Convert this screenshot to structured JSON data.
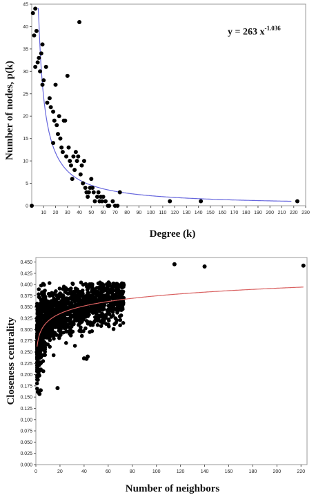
{
  "chart_data": [
    {
      "type": "scatter",
      "xlabel": "Degree (k)",
      "ylabel": "Number of nodes, p(k)",
      "equation": {
        "prefix": "y = 263 x",
        "exponent": "-1.036"
      },
      "xlim": [
        0,
        230
      ],
      "ylim": [
        0,
        45
      ],
      "xticks": [
        10,
        20,
        30,
        40,
        50,
        60,
        70,
        80,
        90,
        100,
        110,
        120,
        130,
        140,
        150,
        160,
        170,
        180,
        190,
        200,
        210,
        220,
        230
      ],
      "yticks": [
        0,
        5,
        10,
        15,
        20,
        25,
        30,
        35,
        40,
        45
      ],
      "grid": false,
      "legend": "none",
      "fit_color": "#6666dd",
      "fit": {
        "a": 263,
        "b": -1.036,
        "x_range": [
          5,
          218
        ]
      },
      "series": [
        {
          "marker_color": "#000000",
          "points": [
            [
              1,
              43
            ],
            [
              3,
              44
            ],
            [
              2,
              38
            ],
            [
              3,
              31
            ],
            [
              4,
              39
            ],
            [
              5,
              32
            ],
            [
              6,
              33
            ],
            [
              7,
              30
            ],
            [
              8,
              34
            ],
            [
              9,
              36
            ],
            [
              9,
              27
            ],
            [
              10,
              28
            ],
            [
              12,
              31
            ],
            [
              13,
              23
            ],
            [
              15,
              24
            ],
            [
              16,
              22
            ],
            [
              18,
              21
            ],
            [
              18,
              14
            ],
            [
              19,
              19
            ],
            [
              20,
              27
            ],
            [
              21,
              18
            ],
            [
              22,
              16
            ],
            [
              23,
              20
            ],
            [
              24,
              15
            ],
            [
              25,
              13
            ],
            [
              26,
              12
            ],
            [
              27,
              19
            ],
            [
              28,
              19
            ],
            [
              29,
              11
            ],
            [
              30,
              29
            ],
            [
              31,
              13
            ],
            [
              32,
              10
            ],
            [
              33,
              9
            ],
            [
              34,
              6
            ],
            [
              35,
              11
            ],
            [
              36,
              8
            ],
            [
              37,
              12
            ],
            [
              38,
              10
            ],
            [
              39,
              11
            ],
            [
              40,
              41
            ],
            [
              41,
              7
            ],
            [
              42,
              9
            ],
            [
              43,
              5
            ],
            [
              44,
              10
            ],
            [
              45,
              4
            ],
            [
              46,
              3
            ],
            [
              47,
              2
            ],
            [
              48,
              3
            ],
            [
              49,
              4
            ],
            [
              50,
              6
            ],
            [
              51,
              4
            ],
            [
              52,
              3
            ],
            [
              53,
              1
            ],
            [
              55,
              2
            ],
            [
              56,
              3
            ],
            [
              57,
              1
            ],
            [
              58,
              2
            ],
            [
              59,
              1
            ],
            [
              60,
              2
            ],
            [
              62,
              1
            ],
            [
              64,
              0
            ],
            [
              65,
              0
            ],
            [
              68,
              1
            ],
            [
              70,
              0
            ],
            [
              72,
              0
            ],
            [
              74,
              3
            ],
            [
              116,
              1
            ],
            [
              142,
              1
            ],
            [
              223,
              1
            ],
            [
              0,
              0
            ]
          ]
        }
      ]
    },
    {
      "type": "scatter",
      "xlabel": "Number of neighbors",
      "ylabel": "Closeness centrality",
      "xlim": [
        0,
        225
      ],
      "ylim": [
        0,
        0.46
      ],
      "xticks": [
        0,
        20,
        40,
        60,
        80,
        100,
        120,
        140,
        160,
        180,
        200,
        220
      ],
      "yticks": [
        "0.000",
        "0.025",
        "0.050",
        "0.075",
        "0.100",
        "0.125",
        "0.150",
        "0.175",
        "0.200",
        "0.225",
        "0.250",
        "0.275",
        "0.300",
        "0.325",
        "0.350",
        "0.375",
        "0.400",
        "0.425",
        "0.450"
      ],
      "grid": false,
      "legend": "none",
      "fit_color": "#d96060",
      "fit": {
        "kind": "log",
        "a": 0.262,
        "b": 0.0245,
        "x_range": [
          1,
          222
        ]
      },
      "series": [
        {
          "marker_color": "#000000",
          "points": [
            [
              115,
              0.445
            ],
            [
              140,
              0.44
            ],
            [
              222,
              0.442
            ],
            [
              42,
              0.235
            ],
            [
              43,
              0.24
            ],
            [
              40,
              0.236
            ],
            [
              18,
              0.17
            ],
            [
              3,
              0.157
            ],
            [
              4,
              0.165
            ]
          ]
        }
      ]
    }
  ]
}
